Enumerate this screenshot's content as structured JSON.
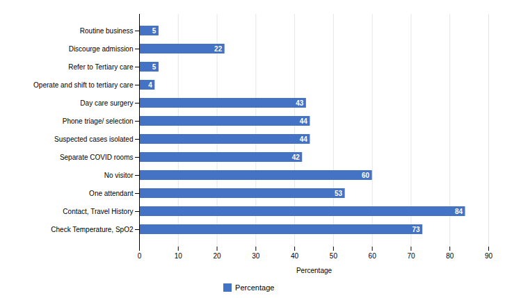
{
  "chart_data": {
    "type": "bar",
    "orientation": "horizontal",
    "categories": [
      "Check Temperature, SpO2",
      "Contact, Travel History",
      "One attendant",
      "No visitor",
      "Separate COVID rooms",
      "Suspected cases isolated",
      "Phone triage/ selection",
      "Day care surgery",
      "Operate and shift to tertiary care",
      "Refer to Tertiary care",
      "Discourge admission",
      "Routine business"
    ],
    "series": [
      {
        "name": "Percentage",
        "color": "#4472C4",
        "values": [
          73,
          84,
          53,
          60,
          42,
          44,
          44,
          43,
          4,
          5,
          22,
          5
        ]
      }
    ],
    "xlabel": "Percentage",
    "xlim": [
      0,
      90
    ],
    "xticks": [
      0,
      10,
      20,
      30,
      40,
      50,
      60,
      70,
      80,
      90
    ],
    "grid": true,
    "data_labels": true,
    "legend": "bottom"
  }
}
